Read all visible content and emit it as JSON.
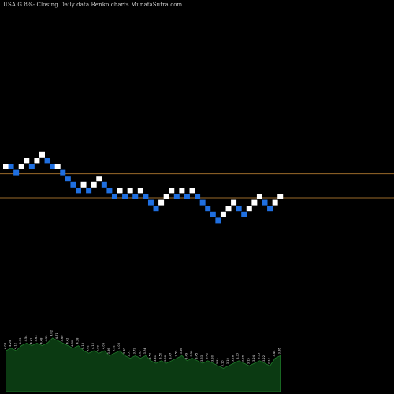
{
  "title": "USA G 8%-  Closing Daily data  Renko  charts MunafaSutra.com",
  "colors": {
    "background": "#000000",
    "up_brick": "#ffffff",
    "down_brick": "#1f6fe0",
    "reference_line": "#9a6a2a",
    "volume_fill": "#0b3a12",
    "volume_stroke": "#1f7a2a"
  },
  "chart_data": [
    {
      "type": "renko",
      "title": "USA G 8%-  Closing Daily data  Renko  charts MunafaSutra.com",
      "xlabel": "",
      "ylabel": "",
      "brick_size": 1,
      "ylim": [
        -13.5,
        10
      ],
      "bricks": [
        {
          "i": 0,
          "level": 0,
          "dir": "up"
        },
        {
          "i": 1,
          "level": 0,
          "dir": "down"
        },
        {
          "i": 2,
          "level": -1,
          "dir": "down"
        },
        {
          "i": 3,
          "level": 0,
          "dir": "up"
        },
        {
          "i": 4,
          "level": 1,
          "dir": "up"
        },
        {
          "i": 5,
          "level": 0,
          "dir": "down"
        },
        {
          "i": 6,
          "level": 1,
          "dir": "up"
        },
        {
          "i": 7,
          "level": 2,
          "dir": "up"
        },
        {
          "i": 8,
          "level": 1,
          "dir": "down"
        },
        {
          "i": 9,
          "level": 0,
          "dir": "down"
        },
        {
          "i": 10,
          "level": 0,
          "dir": "up"
        },
        {
          "i": 11,
          "level": -1,
          "dir": "down"
        },
        {
          "i": 12,
          "level": -2,
          "dir": "down"
        },
        {
          "i": 13,
          "level": -3,
          "dir": "down"
        },
        {
          "i": 14,
          "level": -4,
          "dir": "down"
        },
        {
          "i": 15,
          "level": -3,
          "dir": "up"
        },
        {
          "i": 16,
          "level": -4,
          "dir": "down"
        },
        {
          "i": 17,
          "level": -3,
          "dir": "up"
        },
        {
          "i": 18,
          "level": -2,
          "dir": "up"
        },
        {
          "i": 19,
          "level": -3,
          "dir": "down"
        },
        {
          "i": 20,
          "level": -4,
          "dir": "down"
        },
        {
          "i": 21,
          "level": -5,
          "dir": "down"
        },
        {
          "i": 22,
          "level": -4,
          "dir": "up"
        },
        {
          "i": 23,
          "level": -5,
          "dir": "down"
        },
        {
          "i": 24,
          "level": -4,
          "dir": "up"
        },
        {
          "i": 25,
          "level": -5,
          "dir": "down"
        },
        {
          "i": 26,
          "level": -4,
          "dir": "up"
        },
        {
          "i": 27,
          "level": -5,
          "dir": "down"
        },
        {
          "i": 28,
          "level": -6,
          "dir": "down"
        },
        {
          "i": 29,
          "level": -7,
          "dir": "down"
        },
        {
          "i": 30,
          "level": -6,
          "dir": "up"
        },
        {
          "i": 31,
          "level": -5,
          "dir": "up"
        },
        {
          "i": 32,
          "level": -4,
          "dir": "up"
        },
        {
          "i": 33,
          "level": -5,
          "dir": "down"
        },
        {
          "i": 34,
          "level": -4,
          "dir": "up"
        },
        {
          "i": 35,
          "level": -5,
          "dir": "down"
        },
        {
          "i": 36,
          "level": -4,
          "dir": "up"
        },
        {
          "i": 37,
          "level": -5,
          "dir": "down"
        },
        {
          "i": 38,
          "level": -6,
          "dir": "down"
        },
        {
          "i": 39,
          "level": -7,
          "dir": "down"
        },
        {
          "i": 40,
          "level": -8,
          "dir": "down"
        },
        {
          "i": 41,
          "level": -9,
          "dir": "down"
        },
        {
          "i": 42,
          "level": -8,
          "dir": "up"
        },
        {
          "i": 43,
          "level": -7,
          "dir": "up"
        },
        {
          "i": 44,
          "level": -6,
          "dir": "up"
        },
        {
          "i": 45,
          "level": -7,
          "dir": "down"
        },
        {
          "i": 46,
          "level": -8,
          "dir": "down"
        },
        {
          "i": 47,
          "level": -7,
          "dir": "up"
        },
        {
          "i": 48,
          "level": -6,
          "dir": "up"
        },
        {
          "i": 49,
          "level": -5,
          "dir": "up"
        },
        {
          "i": 50,
          "level": -6,
          "dir": "down"
        },
        {
          "i": 51,
          "level": -7,
          "dir": "down"
        },
        {
          "i": 52,
          "level": -6,
          "dir": "up"
        },
        {
          "i": 53,
          "level": -5,
          "dir": "up"
        }
      ],
      "reference_lines": [
        -1,
        -5
      ],
      "volume": [
        10,
        11,
        10,
        12,
        13,
        12,
        13,
        12,
        13,
        15,
        14,
        13,
        12,
        11,
        12,
        10,
        9,
        10,
        9,
        10,
        8,
        9,
        10,
        8,
        7,
        8,
        7,
        8,
        6,
        5,
        6,
        5,
        6,
        7,
        8,
        6,
        7,
        6,
        5,
        6,
        5,
        4,
        3,
        4,
        5,
        6,
        5,
        4,
        5,
        6,
        5,
        4,
        7,
        8
      ],
      "volume_labels": [
        "4.08",
        "4.25",
        "4.12",
        "4.33",
        "4.54",
        "4.41",
        "4.63",
        "4.48",
        "4.55",
        "4.82",
        "4.71",
        "4.60",
        "4.42",
        "4.30",
        "4.38",
        "4.15",
        "4.02",
        "4.10",
        "3.98",
        "4.05",
        "3.86",
        "3.92",
        "4.03",
        "3.80",
        "3.71",
        "3.79",
        "3.65",
        "3.74",
        "3.52",
        "3.41",
        "3.50",
        "3.38",
        "3.47",
        "3.59",
        "3.66",
        "3.49",
        "3.58",
        "3.45",
        "3.33",
        "3.42",
        "3.30",
        "3.21",
        "3.10",
        "3.19",
        "3.28",
        "3.37",
        "3.26",
        "3.15",
        "3.24",
        "3.35",
        "3.22",
        "3.14",
        "3.44",
        "3.56"
      ]
    }
  ]
}
